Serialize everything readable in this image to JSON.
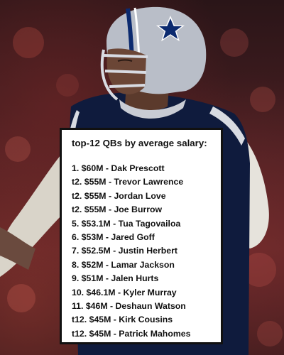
{
  "card": {
    "title": "top-12 QBs by average salary:",
    "items": [
      "1. $60M - Dak Prescott",
      "t2. $55M - Trevor Lawrence",
      "t2. $55M - Jordan Love",
      "t2. $55M - Joe Burrow",
      "5. $53.1M - Tua Tagovailoa",
      "6. $53M - Jared Goff",
      "7. $52.5M - Justin Herbert",
      "8. $52M - Lamar Jackson",
      "9. $51M - Jalen Hurts",
      "10. $46.1M - Kyler Murray",
      "11. $46M - Deshaun Watson",
      "t12. $45M - Kirk Cousins",
      "t12. $45M - Patrick Mahomes"
    ]
  },
  "colors": {
    "card_background": "#ffffff",
    "card_border": "#111111",
    "text": "#111111",
    "jersey_navy": "#0f1b3d",
    "helmet_silver": "#b9bec8",
    "star_blue": "#0b2a6f"
  },
  "icons": [
    "star-logo-icon"
  ]
}
